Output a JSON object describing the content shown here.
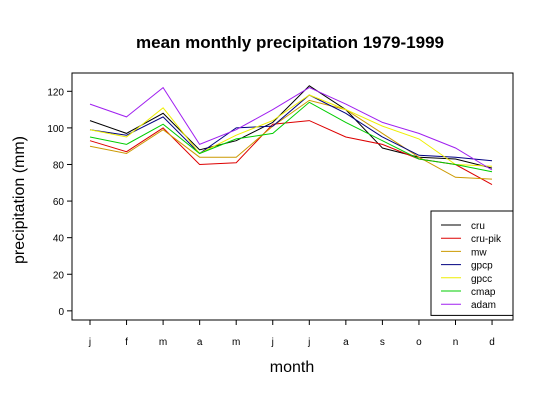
{
  "chart_data": {
    "type": "line",
    "title": "mean monthly precipitation 1979-1999",
    "xlabel": "month",
    "ylabel": "precipitation (mm)",
    "categories": [
      "j",
      "f",
      "m",
      "a",
      "m",
      "j",
      "j",
      "a",
      "s",
      "o",
      "n",
      "d"
    ],
    "ylim": [
      -5,
      130
    ],
    "yticks": [
      0,
      20,
      40,
      60,
      80,
      100,
      120
    ],
    "legend_position": "bottom-right",
    "grid": false,
    "series": [
      {
        "name": "cru",
        "color": "#000000",
        "values": [
          104,
          97,
          108,
          88,
          93,
          103,
          123,
          110,
          89,
          84,
          83,
          78
        ]
      },
      {
        "name": "cru-pik",
        "color": "#dd0000",
        "values": [
          93,
          87,
          100,
          80,
          81,
          102,
          104,
          95,
          91,
          83,
          80,
          69
        ]
      },
      {
        "name": "mw",
        "color": "#cc9900",
        "values": [
          90,
          86,
          99,
          84,
          84,
          101,
          115,
          110,
          97,
          84,
          73,
          72
        ]
      },
      {
        "name": "gpcp",
        "color": "#000080",
        "values": [
          99,
          96,
          106,
          86,
          100,
          101,
          118,
          108,
          95,
          85,
          84,
          82
        ]
      },
      {
        "name": "gpcc",
        "color": "#eeee00",
        "values": [
          99,
          95,
          111,
          86,
          96,
          104,
          118,
          110,
          101,
          94,
          80,
          79
        ]
      },
      {
        "name": "cmap",
        "color": "#00cc00",
        "values": [
          95,
          91,
          102,
          86,
          94,
          97,
          114,
          103,
          93,
          83,
          80,
          76
        ]
      },
      {
        "name": "adam",
        "color": "#a020f0",
        "values": [
          113,
          106,
          122,
          91,
          99,
          110,
          122,
          113,
          103,
          97,
          89,
          77
        ]
      }
    ]
  }
}
